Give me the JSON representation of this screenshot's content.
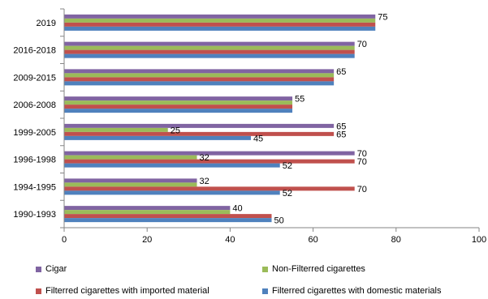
{
  "chart_data": {
    "type": "bar",
    "orientation": "horizontal",
    "categories": [
      "2019",
      "2016-2018",
      "2009-2015",
      "2006-2008",
      "1999-2005",
      "1996-1998",
      "1994-1995",
      "1990-1993"
    ],
    "series": [
      {
        "name": "Cigar",
        "color": "#8064A2",
        "values": [
          75,
          70,
          65,
          55,
          65,
          70,
          32,
          40
        ],
        "labels": [
          "75",
          "70",
          "65",
          "55",
          "65",
          "70",
          "32",
          "40"
        ]
      },
      {
        "name": "Non-Filterred cigarettes",
        "color": "#9BBB59",
        "values": [
          75,
          70,
          65,
          55,
          25,
          32,
          32,
          40
        ],
        "labels": [
          "",
          "",
          "",
          "",
          "25",
          "32",
          "",
          ""
        ]
      },
      {
        "name": "Filterred cigarettes with imported material",
        "color": "#C0504D",
        "values": [
          75,
          70,
          65,
          55,
          65,
          70,
          70,
          50
        ],
        "labels": [
          "",
          "",
          "",
          "",
          "65",
          "70",
          "70",
          ""
        ]
      },
      {
        "name": "Filterred cigarettes with domestic materials",
        "color": "#4F81BD",
        "values": [
          75,
          70,
          65,
          55,
          45,
          52,
          52,
          50
        ],
        "labels": [
          "",
          "",
          "",
          "",
          "45",
          "52",
          "52",
          "50"
        ]
      }
    ],
    "xlim": [
      0,
      100
    ],
    "xticks": [
      "0",
      "20",
      "40",
      "60",
      "80",
      "100"
    ],
    "xlabel": "",
    "ylabel": "",
    "title": "",
    "grid": false,
    "legend_position": "bottom"
  }
}
